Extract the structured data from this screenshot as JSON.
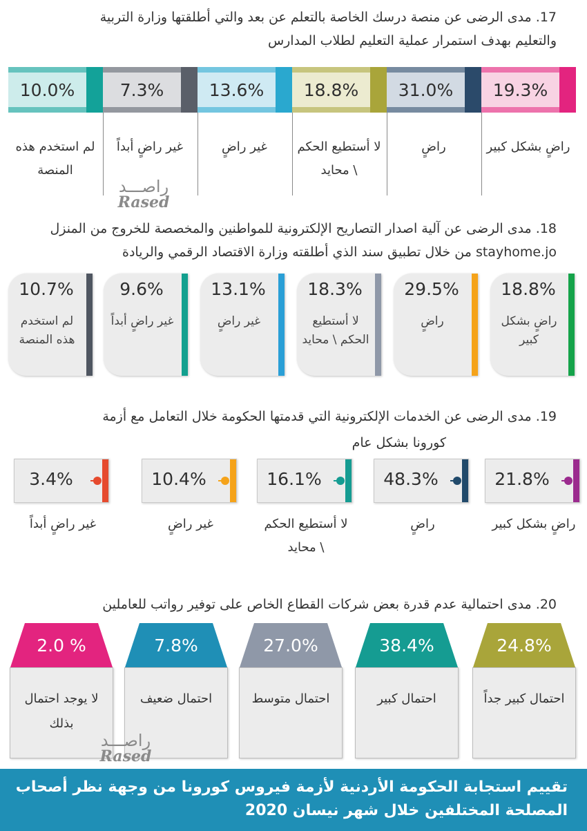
{
  "q17": {
    "title_lines": [
      "17. مدى الرضى عن منصة درسك الخاصة بالتعلم عن بعد والتي أطلقتها وزارة التربية",
      "والتعليم بهدف استمرار عملية التعليم لطلاب المدارس"
    ],
    "items": [
      {
        "value": "19.3%",
        "label": "راضٍ بشكل كبير",
        "color": "#e3247f",
        "pale": "#f8d3e3"
      },
      {
        "value": "31.0%",
        "label": "راضٍ",
        "color": "#2b4a6a",
        "pale": "#d2dae3"
      },
      {
        "value": "18.8%",
        "label": "لا أستطيع الحكم \\ محايد",
        "color": "#a9a53a",
        "pale": "#ecebd0"
      },
      {
        "value": "13.6%",
        "label": "غير راضٍ",
        "color": "#2aa8cf",
        "pale": "#cfeaf3"
      },
      {
        "value": "7.3%",
        "label": "غير راضٍ أبداً",
        "color": "#5a5f69",
        "pale": "#dcdde0"
      },
      {
        "value": "10.0%",
        "label": "لم استخدم هذه المنصة",
        "color": "#13a299",
        "pale": "#cdeceb"
      }
    ]
  },
  "q18": {
    "title_lines": [
      "18. مدى الرضى عن آلية اصدار التصاريح الإلكترونية للمواطنين والمخصصة للخروج من المنزل",
      "stayhome.jo من خلال تطبيق سند الذي أطلقته وزارة الاقتصاد الرقمي والريادة"
    ],
    "items": [
      {
        "value": "18.8%",
        "label": "راضٍ بشكل كبير",
        "color": "#15a34a"
      },
      {
        "value": "29.5%",
        "label": "راضٍ",
        "color": "#f5a31a"
      },
      {
        "value": "18.3%",
        "label": "لا أستطيع الحكم \\ محايد",
        "color": "#8f98a8"
      },
      {
        "value": "13.1%",
        "label": "غير راضٍ",
        "color": "#2a9fd6"
      },
      {
        "value": "9.6%",
        "label": "غير راضٍ أبداً",
        "color": "#13a08f"
      },
      {
        "value": "10.7%",
        "label": "لم استخدم هذه المنصة",
        "color": "#4f5661"
      }
    ]
  },
  "q19": {
    "title_lines": [
      "19. مدى الرضى عن الخدمات الإلكترونية التي قدمتها الحكومة خلال التعامل مع أزمة",
      "كورونا بشكل عام"
    ],
    "items": [
      {
        "value": "21.8%",
        "label": "راضٍ بشكل كبير",
        "color": "#9b2a8e"
      },
      {
        "value": "48.3%",
        "label": "راضٍ",
        "color": "#214a6b"
      },
      {
        "value": "16.1%",
        "label": "لا أستطيع الحكم \\ محايد",
        "color": "#159c92"
      },
      {
        "value": "10.4%",
        "label": "غير راضٍ",
        "color": "#f5a31a"
      },
      {
        "value": "3.4%",
        "label": "غير راضٍ أبداً",
        "color": "#e64a2e"
      }
    ]
  },
  "q20": {
    "title_lines": [
      "20. مدى احتمالية عدم قدرة بعض شركات القطاع الخاص على توفير رواتب للعاملين"
    ],
    "items": [
      {
        "value": "24.8%",
        "label": "احتمال كبير جداً",
        "color": "#a9a53a"
      },
      {
        "value": "38.4%",
        "label": "احتمال كبير",
        "color": "#159c92"
      },
      {
        "value": "27.0%",
        "label": "احتمال متوسط",
        "color": "#8f98a8"
      },
      {
        "value": "7.8%",
        "label": "احتمال ضعيف",
        "color": "#1f8fb6"
      },
      {
        "value": "2.0 %",
        "label": "لا يوجد احتمال بذلك",
        "color": "#e3247f"
      }
    ]
  },
  "watermark": {
    "arabic": "راصـــد",
    "latin": "Rased"
  },
  "footer": {
    "lines": [
      "تقييم استجابة الحكومة الأردنية لأزمة فيروس كورونا من وجهة نظر أصحاب",
      "المصلحة المختلفين خلال شهر نيسان 2020"
    ]
  },
  "chart_data": [
    {
      "type": "bar",
      "title": "17. مدى الرضى عن منصة درسك الخاصة بالتعلم عن بعد والتي أطلقتها وزارة التربية والتعليم بهدف استمرار عملية التعليم لطلاب المدارس",
      "categories": [
        "راضٍ بشكل كبير",
        "راضٍ",
        "لا أستطيع الحكم \\ محايد",
        "غير راضٍ",
        "غير راضٍ أبداً",
        "لم استخدم هذه المنصة"
      ],
      "values": [
        19.3,
        31.0,
        18.8,
        13.6,
        7.3,
        10.0
      ],
      "unit": "%"
    },
    {
      "type": "bar",
      "title": "18. مدى الرضى عن آلية اصدار التصاريح الإلكترونية للمواطنين والمخصصة للخروج من المنزل stayhome.jo من خلال تطبيق سند الذي أطلقته وزارة الاقتصاد الرقمي والريادة",
      "categories": [
        "راضٍ بشكل كبير",
        "راضٍ",
        "لا أستطيع الحكم \\ محايد",
        "غير راضٍ",
        "غير راضٍ أبداً",
        "لم استخدم هذه المنصة"
      ],
      "values": [
        18.8,
        29.5,
        18.3,
        13.1,
        9.6,
        10.7
      ],
      "unit": "%"
    },
    {
      "type": "bar",
      "title": "19. مدى الرضى عن الخدمات الإلكترونية التي قدمتها الحكومة خلال التعامل مع أزمة كورونا بشكل عام",
      "categories": [
        "راضٍ بشكل كبير",
        "راضٍ",
        "لا أستطيع الحكم \\ محايد",
        "غير راضٍ",
        "غير راضٍ أبداً"
      ],
      "values": [
        21.8,
        48.3,
        16.1,
        10.4,
        3.4
      ],
      "unit": "%"
    },
    {
      "type": "bar",
      "title": "20. مدى احتمالية عدم قدرة بعض شركات القطاع الخاص على توفير رواتب للعاملين",
      "categories": [
        "احتمال كبير جداً",
        "احتمال كبير",
        "احتمال متوسط",
        "احتمال ضعيف",
        "لا يوجد احتمال بذلك"
      ],
      "values": [
        24.8,
        38.4,
        27.0,
        7.8,
        2.0
      ],
      "unit": "%"
    }
  ]
}
